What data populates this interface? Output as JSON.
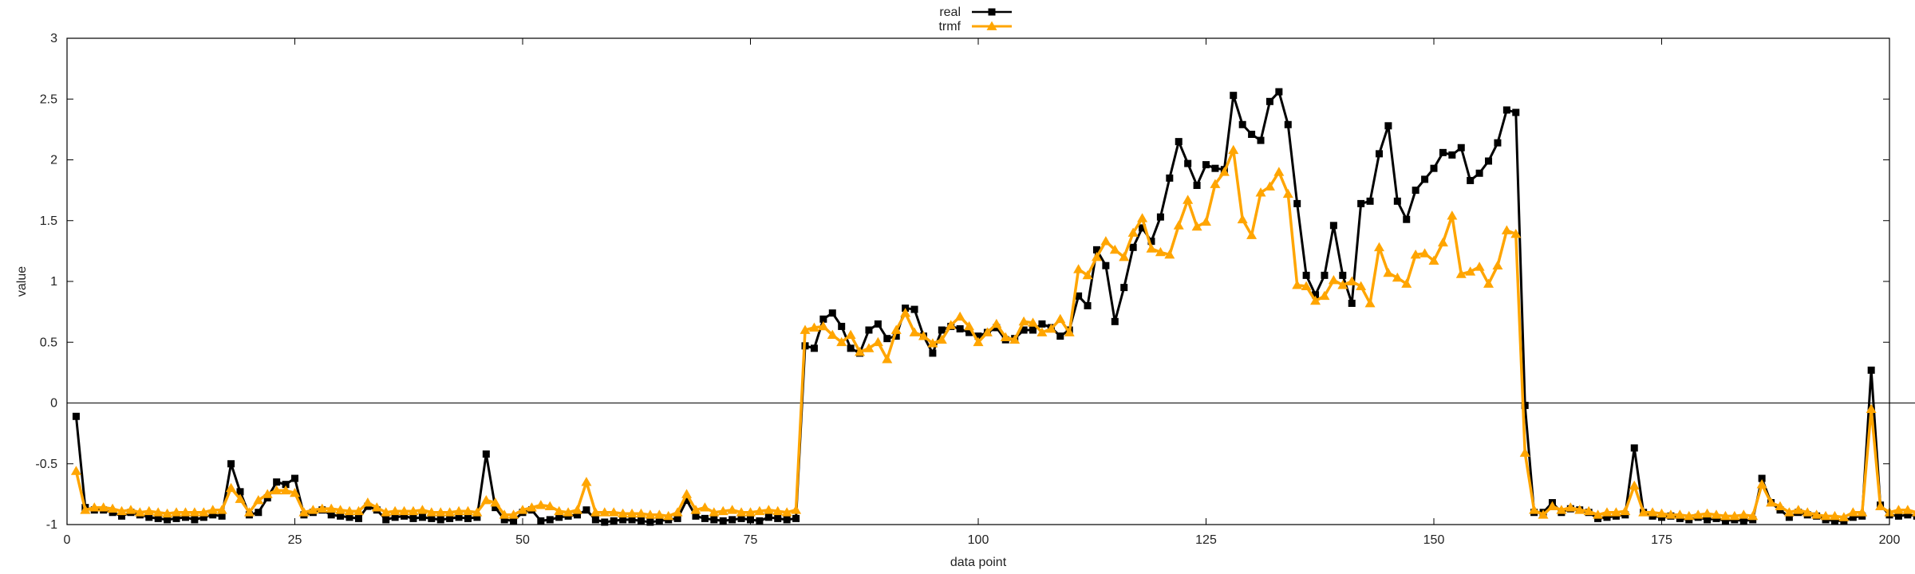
{
  "chart_data": {
    "type": "line",
    "xlabel": "data point",
    "ylabel": "value",
    "xlim": [
      0,
      200
    ],
    "ylim": [
      -1,
      3
    ],
    "xticks": [
      0,
      25,
      50,
      75,
      100,
      125,
      150,
      175,
      200
    ],
    "yticks": [
      -1,
      -0.5,
      0,
      0.5,
      1,
      1.5,
      2,
      2.5,
      3
    ],
    "ytick_labels": [
      "-1",
      "-0.5",
      "0",
      "0.5",
      "1",
      "1.5",
      "2",
      "2.5",
      "3"
    ],
    "zero_line": true,
    "grid": false,
    "legend_position": "top-center",
    "series": [
      {
        "name": "real",
        "color": "#000000",
        "marker": "square",
        "values": [
          -0.11,
          -0.86,
          -0.88,
          -0.88,
          -0.9,
          -0.93,
          -0.9,
          -0.92,
          -0.94,
          -0.95,
          -0.96,
          -0.95,
          -0.94,
          -0.96,
          -0.94,
          -0.92,
          -0.93,
          -0.5,
          -0.73,
          -0.92,
          -0.9,
          -0.78,
          -0.65,
          -0.67,
          -0.62,
          -0.92,
          -0.9,
          -0.88,
          -0.92,
          -0.93,
          -0.94,
          -0.95,
          -0.85,
          -0.88,
          -0.96,
          -0.94,
          -0.93,
          -0.95,
          -0.94,
          -0.95,
          -0.96,
          -0.95,
          -0.94,
          -0.95,
          -0.94,
          -0.42,
          -0.86,
          -0.96,
          -0.97,
          -0.9,
          -0.88,
          -0.97,
          -0.96,
          -0.94,
          -0.93,
          -0.92,
          -0.88,
          -0.96,
          -0.98,
          -0.97,
          -0.96,
          -0.96,
          -0.97,
          -0.98,
          -0.97,
          -0.96,
          -0.95,
          -0.8,
          -0.93,
          -0.95,
          -0.96,
          -0.97,
          -0.96,
          -0.95,
          -0.96,
          -0.97,
          -0.94,
          -0.95,
          -0.96,
          -0.95,
          0.47,
          0.45,
          0.69,
          0.74,
          0.63,
          0.45,
          0.41,
          0.6,
          0.65,
          0.53,
          0.55,
          0.78,
          0.77,
          0.55,
          0.41,
          0.6,
          0.63,
          0.61,
          0.58,
          0.55,
          0.58,
          0.62,
          0.52,
          0.53,
          0.6,
          0.6,
          0.65,
          0.62,
          0.55,
          0.6,
          0.88,
          0.8,
          1.26,
          1.13,
          0.67,
          0.95,
          1.28,
          1.44,
          1.33,
          1.53,
          1.85,
          2.15,
          1.97,
          1.79,
          1.96,
          1.93,
          1.92,
          2.53,
          2.29,
          2.21,
          2.16,
          2.48,
          2.56,
          2.29,
          1.64,
          1.05,
          0.89,
          1.05,
          1.46,
          1.05,
          0.82,
          1.64,
          1.66,
          2.05,
          2.28,
          1.66,
          1.51,
          1.75,
          1.84,
          1.93,
          2.06,
          2.04,
          2.1,
          1.83,
          1.89,
          1.99,
          2.14,
          2.41,
          2.39,
          -0.02,
          -0.9,
          -0.9,
          -0.82,
          -0.9,
          -0.87,
          -0.88,
          -0.9,
          -0.95,
          -0.94,
          -0.93,
          -0.92,
          -0.37,
          -0.9,
          -0.93,
          -0.94,
          -0.93,
          -0.95,
          -0.96,
          -0.94,
          -0.96,
          -0.95,
          -0.97,
          -0.96,
          -0.97,
          -0.96,
          -0.62,
          -0.82,
          -0.88,
          -0.94,
          -0.9,
          -0.92,
          -0.93,
          -0.96,
          -0.97,
          -0.97,
          -0.94,
          -0.93,
          0.27,
          -0.84,
          -0.92,
          -0.93,
          -0.92,
          -0.93,
          -0.92,
          -0.9
        ]
      },
      {
        "name": "trmf",
        "color": "#ffa500",
        "marker": "triangle",
        "values": [
          -0.56,
          -0.88,
          -0.86,
          -0.86,
          -0.87,
          -0.89,
          -0.88,
          -0.9,
          -0.89,
          -0.9,
          -0.91,
          -0.9,
          -0.9,
          -0.9,
          -0.9,
          -0.88,
          -0.88,
          -0.7,
          -0.79,
          -0.9,
          -0.8,
          -0.75,
          -0.72,
          -0.72,
          -0.74,
          -0.9,
          -0.88,
          -0.87,
          -0.87,
          -0.88,
          -0.89,
          -0.89,
          -0.82,
          -0.86,
          -0.9,
          -0.89,
          -0.89,
          -0.89,
          -0.88,
          -0.9,
          -0.9,
          -0.9,
          -0.89,
          -0.89,
          -0.9,
          -0.8,
          -0.82,
          -0.92,
          -0.92,
          -0.88,
          -0.86,
          -0.84,
          -0.85,
          -0.89,
          -0.9,
          -0.88,
          -0.65,
          -0.9,
          -0.9,
          -0.9,
          -0.91,
          -0.91,
          -0.91,
          -0.92,
          -0.92,
          -0.93,
          -0.9,
          -0.75,
          -0.88,
          -0.86,
          -0.9,
          -0.89,
          -0.88,
          -0.9,
          -0.9,
          -0.89,
          -0.88,
          -0.89,
          -0.9,
          -0.88,
          0.6,
          0.62,
          0.63,
          0.56,
          0.5,
          0.56,
          0.42,
          0.45,
          0.5,
          0.36,
          0.6,
          0.74,
          0.58,
          0.55,
          0.49,
          0.52,
          0.64,
          0.71,
          0.63,
          0.5,
          0.58,
          0.65,
          0.54,
          0.52,
          0.67,
          0.66,
          0.58,
          0.61,
          0.69,
          0.58,
          1.1,
          1.05,
          1.2,
          1.33,
          1.26,
          1.2,
          1.4,
          1.52,
          1.27,
          1.24,
          1.22,
          1.46,
          1.67,
          1.45,
          1.49,
          1.8,
          1.9,
          2.08,
          1.51,
          1.38,
          1.73,
          1.78,
          1.9,
          1.72,
          0.97,
          0.96,
          0.84,
          0.88,
          1.01,
          0.97,
          1.0,
          0.96,
          0.82,
          1.28,
          1.07,
          1.03,
          0.98,
          1.22,
          1.23,
          1.17,
          1.32,
          1.54,
          1.06,
          1.08,
          1.12,
          0.98,
          1.13,
          1.42,
          1.39,
          -0.41,
          -0.88,
          -0.92,
          -0.85,
          -0.88,
          -0.86,
          -0.88,
          -0.89,
          -0.92,
          -0.9,
          -0.9,
          -0.89,
          -0.68,
          -0.9,
          -0.9,
          -0.91,
          -0.92,
          -0.92,
          -0.93,
          -0.92,
          -0.91,
          -0.92,
          -0.93,
          -0.93,
          -0.92,
          -0.93,
          -0.67,
          -0.82,
          -0.85,
          -0.9,
          -0.88,
          -0.9,
          -0.92,
          -0.93,
          -0.93,
          -0.94,
          -0.9,
          -0.9,
          -0.05,
          -0.85,
          -0.9,
          -0.88,
          -0.88,
          -0.9,
          -0.92,
          -0.92
        ]
      }
    ]
  }
}
